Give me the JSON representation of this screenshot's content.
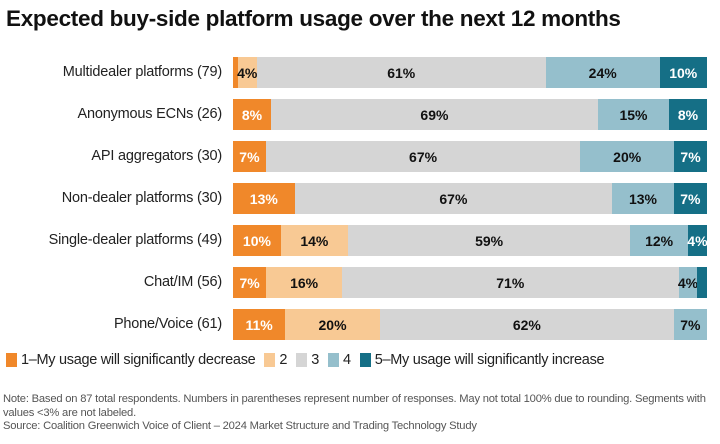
{
  "chart_data": {
    "type": "bar",
    "orientation": "horizontal",
    "stacked": true,
    "normalized_percent": true,
    "title": "Expected buy-side platform usage over the next 12 months",
    "categories": [
      "Multidealer platforms (79)",
      "Anonymous ECNs (26)",
      "API aggregators (30)",
      "Non-dealer platforms (30)",
      "Single-dealer platforms (49)",
      "Chat/IM (56)",
      "Phone/Voice (61)"
    ],
    "series": [
      {
        "name": "1–My usage will significantly decrease",
        "color": "#f0882a",
        "label_color": "#ffffff",
        "values": [
          1,
          8,
          7,
          13,
          10,
          7,
          11
        ]
      },
      {
        "name": "2",
        "color": "#f8c994",
        "label_color": "#111111",
        "values": [
          4,
          0,
          0,
          0,
          14,
          16,
          20
        ]
      },
      {
        "name": "3",
        "color": "#d5d5d5",
        "label_color": "#111111",
        "values": [
          61,
          69,
          67,
          67,
          59,
          71,
          62
        ]
      },
      {
        "name": "4",
        "color": "#95bfcc",
        "label_color": "#111111",
        "values": [
          24,
          15,
          20,
          13,
          12,
          4,
          7
        ]
      },
      {
        "name": "5–My usage will significantly increase",
        "color": "#156f86",
        "label_color": "#ffffff",
        "values": [
          10,
          8,
          7,
          7,
          4,
          2,
          0
        ]
      }
    ],
    "label_min": 3,
    "value_suffix": "%",
    "legend_position": "bottom",
    "grid": false
  },
  "notes": {
    "note": "Note: Based on 87 total respondents. Numbers in parentheses represent number of responses. May not total 100% due to rounding. Segments with values <3% are not labeled.",
    "source": "Source: Coalition Greenwich Voice of Client – 2024 Market Structure and Trading Technology Study"
  }
}
